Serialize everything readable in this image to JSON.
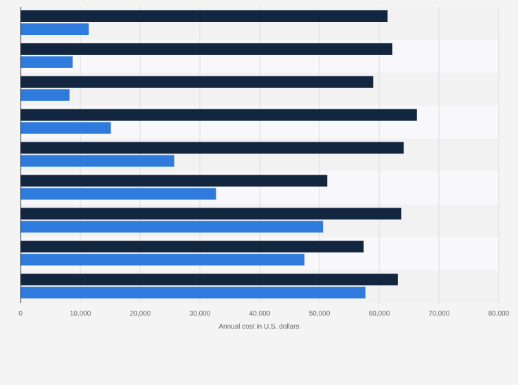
{
  "chart_data": {
    "type": "bar",
    "orientation": "horizontal",
    "title": "",
    "xlabel": "Annual cost in U.S. dollars",
    "ylabel": "",
    "xlim": [
      0,
      80000
    ],
    "x_ticks": [
      0,
      10000,
      20000,
      30000,
      40000,
      50000,
      60000,
      70000,
      80000
    ],
    "x_tick_labels": [
      "0",
      "10,000",
      "20,000",
      "30,000",
      "40,000",
      "50,000",
      "60,000",
      "70,000",
      "80,000"
    ],
    "categories": [
      "",
      "",
      "",
      "",
      "",
      "",
      "",
      "",
      ""
    ],
    "grid": true,
    "series": [
      {
        "color": "#12263f",
        "values": [
          61400,
          62200,
          59000,
          66300,
          64100,
          51300,
          63700,
          57400,
          63100
        ]
      },
      {
        "color": "#2e7bdd",
        "values": [
          11400,
          8700,
          8200,
          15100,
          25700,
          32700,
          50600,
          47500,
          57700
        ]
      }
    ]
  }
}
